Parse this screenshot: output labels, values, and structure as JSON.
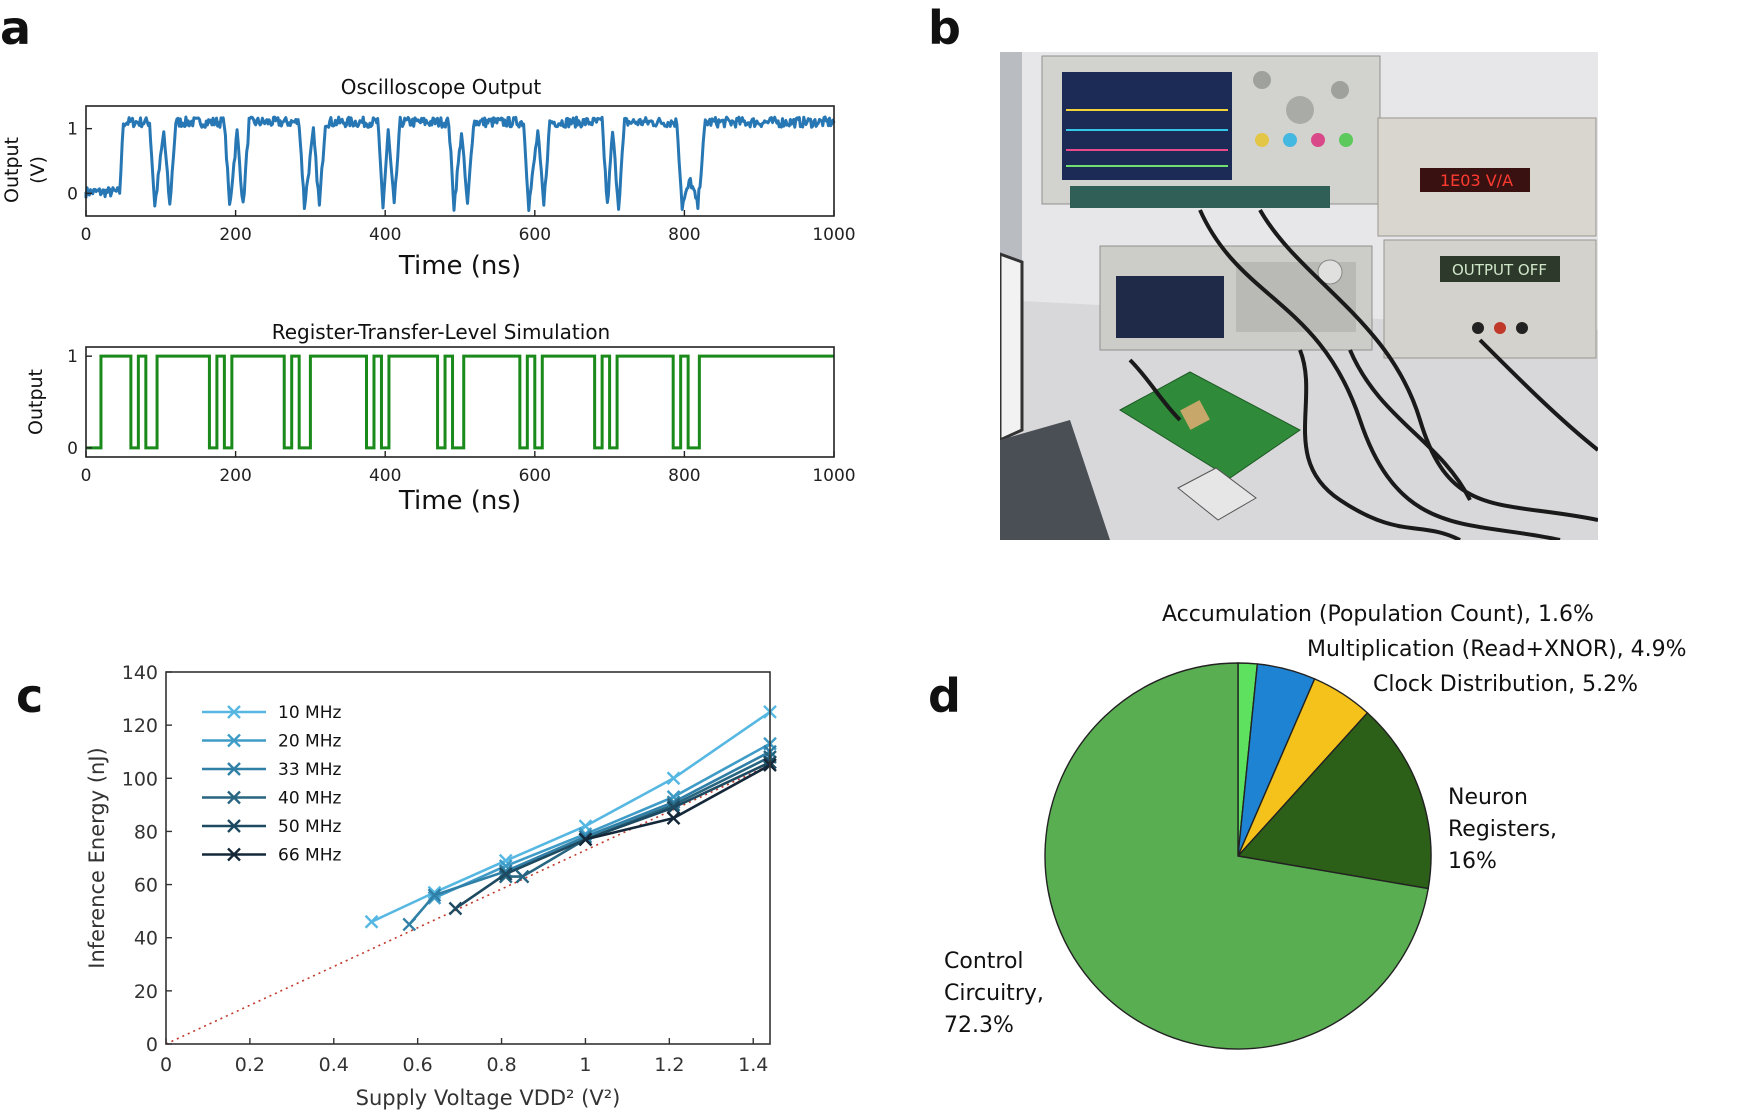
{
  "panels": {
    "a": "a",
    "b": "b",
    "c": "c",
    "d": "d"
  },
  "chart_data": [
    {
      "id": "a-top",
      "type": "line",
      "title": "Oscilloscope Output",
      "xlabel": "Time (ns)",
      "ylabel_line1": "Output",
      "ylabel_line2": "(V)",
      "xlim": [
        0,
        1000
      ],
      "ylim": [
        -0.35,
        1.35
      ],
      "xticks": [
        0,
        200,
        400,
        600,
        800,
        1000
      ],
      "yticks": [
        0,
        1
      ],
      "color": "#2777b4",
      "pulses": [
        {
          "t": 45,
          "v": 0.0
        },
        {
          "t": 50,
          "v": 1.1
        },
        {
          "t": 85,
          "v": 1.1
        },
        {
          "t": 92,
          "v": -0.2
        },
        {
          "t": 104,
          "v": 0.95
        },
        {
          "t": 112,
          "v": -0.2
        },
        {
          "t": 120,
          "v": 1.1
        },
        {
          "t": 185,
          "v": 1.1
        },
        {
          "t": 192,
          "v": -0.2
        },
        {
          "t": 202,
          "v": 0.95
        },
        {
          "t": 210,
          "v": -0.2
        },
        {
          "t": 218,
          "v": 1.1
        },
        {
          "t": 285,
          "v": 1.1
        },
        {
          "t": 292,
          "v": -0.2
        },
        {
          "t": 304,
          "v": 0.95
        },
        {
          "t": 312,
          "v": -0.2
        },
        {
          "t": 320,
          "v": 1.1
        },
        {
          "t": 390,
          "v": 1.1
        },
        {
          "t": 397,
          "v": -0.2
        },
        {
          "t": 404,
          "v": 0.95
        },
        {
          "t": 412,
          "v": -0.2
        },
        {
          "t": 420,
          "v": 1.1
        },
        {
          "t": 485,
          "v": 1.1
        },
        {
          "t": 492,
          "v": -0.2
        },
        {
          "t": 502,
          "v": 0.95
        },
        {
          "t": 510,
          "v": -0.2
        },
        {
          "t": 518,
          "v": 1.1
        },
        {
          "t": 585,
          "v": 1.1
        },
        {
          "t": 592,
          "v": -0.2
        },
        {
          "t": 604,
          "v": 0.95
        },
        {
          "t": 612,
          "v": -0.2
        },
        {
          "t": 620,
          "v": 1.1
        },
        {
          "t": 690,
          "v": 1.1
        },
        {
          "t": 697,
          "v": -0.2
        },
        {
          "t": 704,
          "v": 0.95
        },
        {
          "t": 712,
          "v": -0.2
        },
        {
          "t": 720,
          "v": 1.1
        },
        {
          "t": 790,
          "v": 1.1
        },
        {
          "t": 797,
          "v": -0.2
        },
        {
          "t": 808,
          "v": 0.2
        },
        {
          "t": 818,
          "v": -0.2
        },
        {
          "t": 828,
          "v": 1.1
        },
        {
          "t": 1000,
          "v": 1.1
        }
      ]
    },
    {
      "id": "a-bottom",
      "type": "line",
      "title": "Register-Transfer-Level Simulation",
      "xlabel": "Time (ns)",
      "ylabel": "Output",
      "xlim": [
        0,
        1000
      ],
      "ylim": [
        -0.1,
        1.1
      ],
      "xticks": [
        0,
        200,
        400,
        600,
        800,
        1000
      ],
      "yticks": [
        0,
        1
      ],
      "color": "#1a8a1a",
      "transitions": [
        {
          "t": 0,
          "v": 0
        },
        {
          "t": 20,
          "v": 1
        },
        {
          "t": 60,
          "v": 0
        },
        {
          "t": 70,
          "v": 1
        },
        {
          "t": 80,
          "v": 0
        },
        {
          "t": 95,
          "v": 1
        },
        {
          "t": 165,
          "v": 0
        },
        {
          "t": 175,
          "v": 1
        },
        {
          "t": 185,
          "v": 0
        },
        {
          "t": 195,
          "v": 1
        },
        {
          "t": 265,
          "v": 0
        },
        {
          "t": 275,
          "v": 1
        },
        {
          "t": 285,
          "v": 0
        },
        {
          "t": 300,
          "v": 1
        },
        {
          "t": 375,
          "v": 0
        },
        {
          "t": 385,
          "v": 1
        },
        {
          "t": 395,
          "v": 0
        },
        {
          "t": 405,
          "v": 1
        },
        {
          "t": 470,
          "v": 0
        },
        {
          "t": 480,
          "v": 1
        },
        {
          "t": 490,
          "v": 0
        },
        {
          "t": 505,
          "v": 1
        },
        {
          "t": 580,
          "v": 0
        },
        {
          "t": 590,
          "v": 1
        },
        {
          "t": 600,
          "v": 0
        },
        {
          "t": 610,
          "v": 1
        },
        {
          "t": 680,
          "v": 0
        },
        {
          "t": 690,
          "v": 1
        },
        {
          "t": 700,
          "v": 0
        },
        {
          "t": 710,
          "v": 1
        },
        {
          "t": 785,
          "v": 0
        },
        {
          "t": 795,
          "v": 1
        },
        {
          "t": 805,
          "v": 0
        },
        {
          "t": 820,
          "v": 1
        },
        {
          "t": 1000,
          "v": 1
        }
      ]
    },
    {
      "id": "c",
      "type": "line",
      "xlabel": "Supply Voltage VDD² (V²)",
      "ylabel": "Inference Energy (nJ)",
      "xlim": [
        0,
        1.44
      ],
      "ylim": [
        0,
        140
      ],
      "xticks": [
        0,
        0.2,
        0.4,
        0.6,
        0.8,
        1,
        1.2,
        1.4
      ],
      "xtick_labels": [
        "0",
        "0.2",
        "0.4",
        "0.6",
        "0.8",
        "1",
        "1.2",
        "1.4"
      ],
      "yticks": [
        0,
        20,
        40,
        60,
        80,
        100,
        120,
        140
      ],
      "legend_position": "upper-left",
      "reference_line": {
        "x": [
          0,
          1.44
        ],
        "y": [
          0,
          105
        ],
        "color": "#c0392b",
        "style": "dotted"
      },
      "series": [
        {
          "name": "10 MHz",
          "color": "#56b8e2",
          "x": [
            0.49,
            0.64,
            0.81,
            1.0,
            1.21,
            1.44
          ],
          "y": [
            46,
            57,
            69,
            82,
            100,
            125
          ]
        },
        {
          "name": "20 MHz",
          "color": "#3f9cc7",
          "x": [
            0.64,
            0.81,
            1.0,
            1.21,
            1.44
          ],
          "y": [
            55,
            67,
            79,
            93,
            113
          ]
        },
        {
          "name": "33 MHz",
          "color": "#307fa6",
          "x": [
            0.58,
            0.64,
            0.81,
            1.0,
            1.21,
            1.44
          ],
          "y": [
            45,
            56,
            65,
            78,
            91,
            110
          ]
        },
        {
          "name": "40 MHz",
          "color": "#276580",
          "x": [
            0.81,
            0.85,
            1.0,
            1.21,
            1.44
          ],
          "y": [
            63,
            63,
            77,
            90,
            108
          ]
        },
        {
          "name": "50 MHz",
          "color": "#1d4a60",
          "x": [
            0.69,
            0.81,
            1.0,
            1.21,
            1.44
          ],
          "y": [
            51,
            64,
            77,
            89,
            106
          ]
        },
        {
          "name": "66 MHz",
          "color": "#14283a",
          "x": [
            1.0,
            1.21,
            1.44
          ],
          "y": [
            77,
            85,
            105
          ]
        }
      ]
    },
    {
      "id": "d",
      "type": "pie",
      "start": "top, clockwise",
      "slices": [
        {
          "label": "Accumulation (Population Count), 1.6%",
          "value": 1.6,
          "color": "#5ee15e"
        },
        {
          "label": "Multiplication (Read+XNOR), 4.9%",
          "value": 4.9,
          "color": "#1f83d4"
        },
        {
          "label": "Clock Distribution, 5.2%",
          "value": 5.2,
          "color": "#f4c21a"
        },
        {
          "label_lines": [
            "Neuron",
            "Registers,",
            "16%"
          ],
          "value": 16,
          "color": "#2c5f17"
        },
        {
          "label_lines": [
            "Control",
            "Circuitry,",
            "72.3%"
          ],
          "value": 72.3,
          "color": "#5aae52"
        }
      ]
    }
  ],
  "photo": {
    "panel": "b",
    "screen_texts": [
      "1E03 V/A",
      "OUTPUT OFF"
    ],
    "colors": {
      "wall": "#e7e7e9",
      "desk": "#d9d9db",
      "instrument": "#cfd0cc",
      "pcb": "#2f8a3a",
      "dark": "#222222"
    }
  }
}
